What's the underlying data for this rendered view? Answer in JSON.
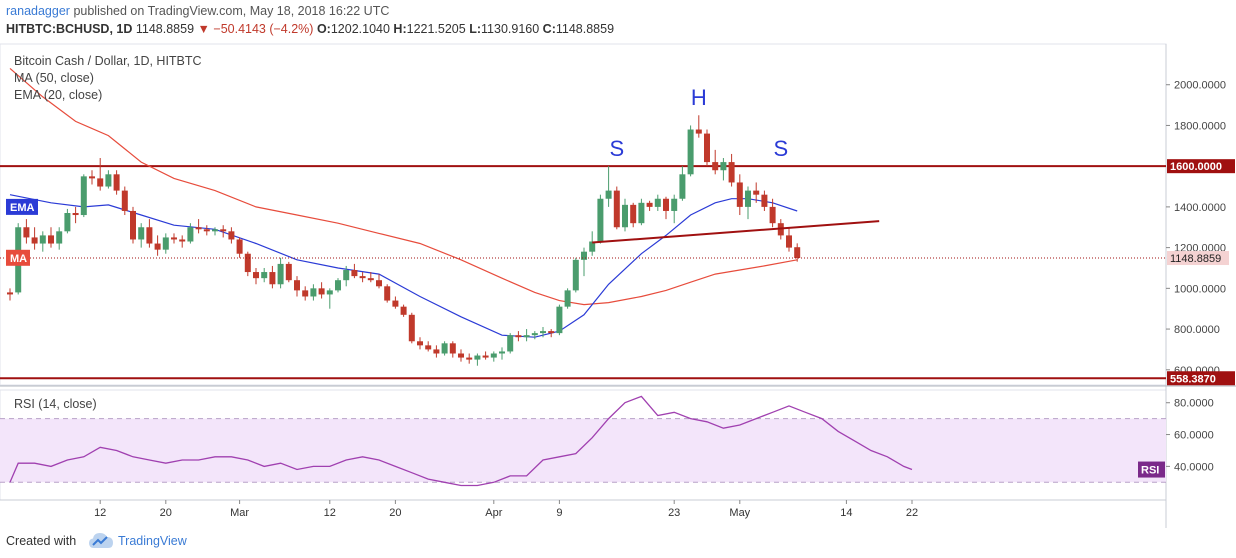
{
  "header": {
    "author": "ranadagger",
    "published_text": "published on TradingView.com, May 18, 2018 16:22 UTC",
    "symbol": "HITBTC:BCHUSD, 1D",
    "last": "1148.8859",
    "change": "−50.4143 (−4.2%)",
    "o_label": "O:",
    "o_value": "1202.1040",
    "h_label": "H:",
    "h_value": "1221.5205",
    "l_label": "L:",
    "l_value": "1130.9160",
    "c_label": "C:",
    "c_value": "1148.8859"
  },
  "footer": {
    "created_with": "Created with",
    "brand": "TradingView"
  },
  "colors": {
    "up": "#4a9c6d",
    "down": "#c0392b",
    "ma": "#e74c3c",
    "ema": "#2b3bd6",
    "rsi": "#a040b0",
    "level": "#a01010"
  },
  "chart_data": [
    {
      "type": "candlestick",
      "legend": [
        "Bitcoin Cash / Dollar, 1D, HITBTC",
        "MA (50, close)",
        "EMA (20, close)"
      ],
      "ylim": [
        540,
        2200
      ],
      "y_ticks": [
        "2000.0000",
        "1800.0000",
        "1400.0000",
        "1200.0000",
        "1000.0000",
        "800.0000",
        "600.0000"
      ],
      "x_ticks": [
        "12",
        "20",
        "Mar",
        "12",
        "20",
        "Apr",
        "9",
        "23",
        "May",
        "14",
        "22"
      ],
      "x_tick_days": [
        11,
        19,
        28,
        39,
        47,
        59,
        67,
        81,
        89,
        102,
        110
      ],
      "candles": [
        [
          0,
          980,
          1000,
          940,
          970
        ],
        [
          1,
          980,
          1320,
          970,
          1300
        ],
        [
          2,
          1300,
          1340,
          1220,
          1250
        ],
        [
          3,
          1250,
          1300,
          1190,
          1220
        ],
        [
          4,
          1220,
          1280,
          1180,
          1260
        ],
        [
          5,
          1260,
          1300,
          1200,
          1220
        ],
        [
          6,
          1220,
          1300,
          1190,
          1280
        ],
        [
          7,
          1280,
          1390,
          1270,
          1370
        ],
        [
          8,
          1370,
          1400,
          1320,
          1360
        ],
        [
          9,
          1360,
          1560,
          1350,
          1550
        ],
        [
          10,
          1550,
          1580,
          1510,
          1540
        ],
        [
          11,
          1540,
          1640,
          1480,
          1500
        ],
        [
          12,
          1500,
          1580,
          1490,
          1560
        ],
        [
          13,
          1560,
          1580,
          1460,
          1480
        ],
        [
          14,
          1480,
          1500,
          1360,
          1380
        ],
        [
          15,
          1380,
          1400,
          1220,
          1240
        ],
        [
          16,
          1240,
          1320,
          1200,
          1300
        ],
        [
          17,
          1300,
          1340,
          1200,
          1220
        ],
        [
          18,
          1220,
          1260,
          1160,
          1190
        ],
        [
          19,
          1190,
          1270,
          1170,
          1250
        ],
        [
          20,
          1250,
          1270,
          1220,
          1240
        ],
        [
          21,
          1240,
          1260,
          1200,
          1230
        ],
        [
          22,
          1230,
          1320,
          1220,
          1300
        ],
        [
          23,
          1300,
          1340,
          1270,
          1290
        ],
        [
          24,
          1290,
          1310,
          1260,
          1280
        ],
        [
          25,
          1280,
          1300,
          1260,
          1290
        ],
        [
          26,
          1290,
          1310,
          1250,
          1280
        ],
        [
          27,
          1280,
          1300,
          1220,
          1240
        ],
        [
          28,
          1240,
          1250,
          1150,
          1170
        ],
        [
          29,
          1170,
          1180,
          1060,
          1080
        ],
        [
          30,
          1080,
          1100,
          1020,
          1050
        ],
        [
          31,
          1050,
          1100,
          1030,
          1080
        ],
        [
          32,
          1080,
          1110,
          1000,
          1020
        ],
        [
          33,
          1020,
          1150,
          1000,
          1120
        ],
        [
          34,
          1120,
          1130,
          1030,
          1040
        ],
        [
          35,
          1040,
          1060,
          960,
          990
        ],
        [
          36,
          990,
          1010,
          940,
          960
        ],
        [
          37,
          960,
          1020,
          940,
          1000
        ],
        [
          38,
          1000,
          1030,
          950,
          970
        ],
        [
          39,
          970,
          1000,
          900,
          990
        ],
        [
          40,
          990,
          1050,
          980,
          1040
        ],
        [
          41,
          1040,
          1110,
          1010,
          1090
        ],
        [
          42,
          1090,
          1120,
          1050,
          1060
        ],
        [
          43,
          1060,
          1080,
          1030,
          1050
        ],
        [
          44,
          1050,
          1080,
          1030,
          1040
        ],
        [
          45,
          1040,
          1070,
          1000,
          1010
        ],
        [
          46,
          1010,
          1020,
          930,
          940
        ],
        [
          47,
          940,
          960,
          900,
          910
        ],
        [
          48,
          910,
          920,
          860,
          870
        ],
        [
          49,
          870,
          880,
          730,
          740
        ],
        [
          50,
          740,
          760,
          700,
          720
        ],
        [
          51,
          720,
          740,
          690,
          700
        ],
        [
          52,
          700,
          720,
          660,
          680
        ],
        [
          53,
          680,
          740,
          670,
          730
        ],
        [
          54,
          730,
          740,
          660,
          680
        ],
        [
          55,
          680,
          700,
          640,
          660
        ],
        [
          56,
          660,
          680,
          630,
          650
        ],
        [
          57,
          650,
          680,
          620,
          670
        ],
        [
          58,
          670,
          690,
          650,
          660
        ],
        [
          59,
          660,
          690,
          640,
          680
        ],
        [
          60,
          680,
          710,
          650,
          690
        ],
        [
          61,
          690,
          780,
          680,
          770
        ],
        [
          62,
          770,
          790,
          740,
          760
        ],
        [
          63,
          760,
          800,
          740,
          770
        ],
        [
          64,
          770,
          790,
          750,
          780
        ],
        [
          65,
          780,
          810,
          760,
          790
        ],
        [
          66,
          790,
          800,
          760,
          780
        ],
        [
          67,
          780,
          920,
          770,
          910
        ],
        [
          68,
          910,
          1000,
          900,
          990
        ],
        [
          69,
          990,
          1150,
          980,
          1140
        ],
        [
          70,
          1140,
          1200,
          1060,
          1180
        ],
        [
          71,
          1180,
          1280,
          1160,
          1230
        ],
        [
          72,
          1230,
          1460,
          1220,
          1440
        ],
        [
          73,
          1440,
          1600,
          1400,
          1480
        ],
        [
          74,
          1480,
          1500,
          1290,
          1300
        ],
        [
          75,
          1300,
          1440,
          1280,
          1410
        ],
        [
          76,
          1410,
          1420,
          1300,
          1320
        ],
        [
          77,
          1320,
          1440,
          1310,
          1420
        ],
        [
          78,
          1420,
          1430,
          1380,
          1400
        ],
        [
          79,
          1400,
          1460,
          1380,
          1440
        ],
        [
          80,
          1440,
          1450,
          1340,
          1380
        ],
        [
          81,
          1380,
          1460,
          1320,
          1440
        ],
        [
          82,
          1440,
          1600,
          1430,
          1560
        ],
        [
          83,
          1560,
          1800,
          1550,
          1780
        ],
        [
          84,
          1780,
          1850,
          1740,
          1760
        ],
        [
          85,
          1760,
          1780,
          1600,
          1620
        ],
        [
          86,
          1620,
          1680,
          1560,
          1580
        ],
        [
          87,
          1580,
          1640,
          1530,
          1620
        ],
        [
          88,
          1620,
          1660,
          1500,
          1520
        ],
        [
          89,
          1520,
          1560,
          1360,
          1400
        ],
        [
          90,
          1400,
          1500,
          1340,
          1480
        ],
        [
          91,
          1480,
          1520,
          1420,
          1460
        ],
        [
          92,
          1460,
          1480,
          1380,
          1400
        ],
        [
          93,
          1400,
          1440,
          1300,
          1320
        ],
        [
          94,
          1320,
          1340,
          1240,
          1260
        ],
        [
          95,
          1260,
          1300,
          1180,
          1200
        ],
        [
          96,
          1202,
          1221,
          1131,
          1149
        ]
      ],
      "ema20": [
        [
          0,
          1460
        ],
        [
          5,
          1420
        ],
        [
          9,
          1400
        ],
        [
          12,
          1410
        ],
        [
          16,
          1360
        ],
        [
          20,
          1310
        ],
        [
          25,
          1290
        ],
        [
          30,
          1220
        ],
        [
          35,
          1140
        ],
        [
          40,
          1100
        ],
        [
          45,
          1070
        ],
        [
          50,
          960
        ],
        [
          55,
          860
        ],
        [
          60,
          770
        ],
        [
          64,
          760
        ],
        [
          67,
          790
        ],
        [
          70,
          870
        ],
        [
          73,
          1020
        ],
        [
          77,
          1170
        ],
        [
          80,
          1260
        ],
        [
          83,
          1360
        ],
        [
          86,
          1420
        ],
        [
          88,
          1440
        ],
        [
          90,
          1440
        ],
        [
          93,
          1420
        ],
        [
          96,
          1380
        ]
      ],
      "ma50": [
        [
          0,
          2080
        ],
        [
          4,
          1940
        ],
        [
          8,
          1820
        ],
        [
          12,
          1750
        ],
        [
          16,
          1620
        ],
        [
          20,
          1540
        ],
        [
          25,
          1480
        ],
        [
          30,
          1400
        ],
        [
          35,
          1360
        ],
        [
          40,
          1320
        ],
        [
          45,
          1270
        ],
        [
          50,
          1220
        ],
        [
          55,
          1140
        ],
        [
          60,
          1050
        ],
        [
          64,
          980
        ],
        [
          67,
          940
        ],
        [
          70,
          920
        ],
        [
          73,
          930
        ],
        [
          77,
          960
        ],
        [
          80,
          990
        ],
        [
          83,
          1030
        ],
        [
          86,
          1070
        ],
        [
          89,
          1090
        ],
        [
          92,
          1110
        ],
        [
          96,
          1140
        ]
      ],
      "levels": [
        {
          "name": "resistance",
          "value": 1600,
          "label": "1600.0000"
        },
        {
          "name": "support",
          "value": 558.387,
          "label": "558.3870"
        }
      ],
      "last_price": {
        "value": 1148.8859,
        "label": "1148.8859"
      },
      "neckline": [
        [
          71,
          1225
        ],
        [
          106,
          1330
        ]
      ],
      "annotations": [
        {
          "text": "S",
          "x": 74,
          "y": 1650
        },
        {
          "text": "H",
          "x": 84,
          "y": 1900
        },
        {
          "text": "S",
          "x": 94,
          "y": 1650
        }
      ],
      "badges": [
        "EMA",
        "MA"
      ]
    },
    {
      "type": "line",
      "title": "RSI (14, close)",
      "ylim": [
        22,
        88
      ],
      "y_ticks": [
        "80.0000",
        "60.0000",
        "40.0000"
      ],
      "band": [
        30,
        70
      ],
      "badge": "RSI",
      "values": [
        [
          0,
          30
        ],
        [
          1,
          42
        ],
        [
          3,
          42
        ],
        [
          5,
          40
        ],
        [
          7,
          44
        ],
        [
          9,
          46
        ],
        [
          11,
          52
        ],
        [
          13,
          50
        ],
        [
          15,
          46
        ],
        [
          17,
          44
        ],
        [
          19,
          42
        ],
        [
          21,
          44
        ],
        [
          23,
          44
        ],
        [
          25,
          46
        ],
        [
          27,
          46
        ],
        [
          29,
          44
        ],
        [
          31,
          40
        ],
        [
          33,
          42
        ],
        [
          35,
          38
        ],
        [
          37,
          40
        ],
        [
          39,
          40
        ],
        [
          41,
          44
        ],
        [
          43,
          46
        ],
        [
          45,
          44
        ],
        [
          47,
          40
        ],
        [
          49,
          36
        ],
        [
          51,
          32
        ],
        [
          53,
          30
        ],
        [
          55,
          28
        ],
        [
          57,
          28
        ],
        [
          59,
          30
        ],
        [
          61,
          34
        ],
        [
          63,
          34
        ],
        [
          65,
          44
        ],
        [
          67,
          46
        ],
        [
          69,
          48
        ],
        [
          71,
          58
        ],
        [
          73,
          70
        ],
        [
          75,
          80
        ],
        [
          77,
          84
        ],
        [
          79,
          72
        ],
        [
          81,
          74
        ],
        [
          83,
          70
        ],
        [
          85,
          68
        ],
        [
          87,
          64
        ],
        [
          89,
          66
        ],
        [
          91,
          70
        ],
        [
          93,
          74
        ],
        [
          95,
          78
        ],
        [
          97,
          74
        ],
        [
          99,
          70
        ],
        [
          101,
          62
        ],
        [
          103,
          56
        ],
        [
          105,
          50
        ],
        [
          107,
          46
        ],
        [
          109,
          40
        ],
        [
          110,
          38
        ]
      ]
    }
  ]
}
